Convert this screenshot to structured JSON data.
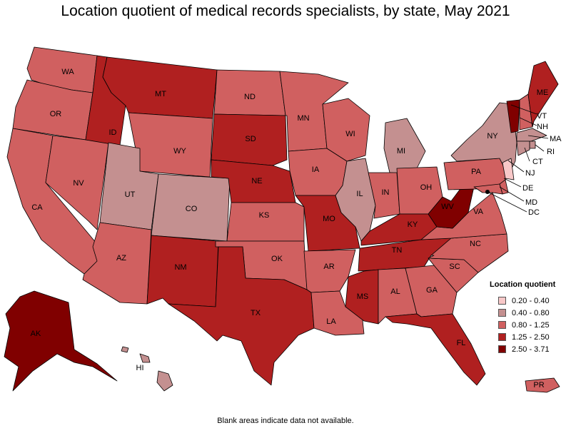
{
  "title": "Location quotient of medical records specialists, by state, May 2021",
  "footnote": "Blank areas indicate data not available.",
  "legend": {
    "title": "Location quotient",
    "items": [
      {
        "label": "0.20 - 0.40",
        "color": "#f8c8c8"
      },
      {
        "label": "0.40 - 0.80",
        "color": "#c49090"
      },
      {
        "label": "0.80 - 1.25",
        "color": "#d06060"
      },
      {
        "label": "1.25 - 2.50",
        "color": "#b02020"
      },
      {
        "label": "2.50 - 3.71",
        "color": "#800000"
      }
    ]
  },
  "states": [
    {
      "abbr": "WA",
      "class": 2
    },
    {
      "abbr": "OR",
      "class": 2
    },
    {
      "abbr": "CA",
      "class": 2
    },
    {
      "abbr": "NV",
      "class": 2
    },
    {
      "abbr": "ID",
      "class": 3
    },
    {
      "abbr": "MT",
      "class": 3
    },
    {
      "abbr": "WY",
      "class": 2
    },
    {
      "abbr": "UT",
      "class": 1
    },
    {
      "abbr": "CO",
      "class": 1
    },
    {
      "abbr": "AZ",
      "class": 2
    },
    {
      "abbr": "NM",
      "class": 3
    },
    {
      "abbr": "ND",
      "class": 2
    },
    {
      "abbr": "SD",
      "class": 3
    },
    {
      "abbr": "NE",
      "class": 3
    },
    {
      "abbr": "KS",
      "class": 2
    },
    {
      "abbr": "OK",
      "class": 2
    },
    {
      "abbr": "TX",
      "class": 3
    },
    {
      "abbr": "MN",
      "class": 2
    },
    {
      "abbr": "IA",
      "class": 2
    },
    {
      "abbr": "MO",
      "class": 3
    },
    {
      "abbr": "AR",
      "class": 2
    },
    {
      "abbr": "LA",
      "class": 2
    },
    {
      "abbr": "WI",
      "class": 2
    },
    {
      "abbr": "IL",
      "class": 1
    },
    {
      "abbr": "MI",
      "class": 1
    },
    {
      "abbr": "IN",
      "class": 2
    },
    {
      "abbr": "OH",
      "class": 2
    },
    {
      "abbr": "KY",
      "class": 3
    },
    {
      "abbr": "TN",
      "class": 3
    },
    {
      "abbr": "MS",
      "class": 3
    },
    {
      "abbr": "AL",
      "class": 2
    },
    {
      "abbr": "GA",
      "class": 2
    },
    {
      "abbr": "FL",
      "class": 3
    },
    {
      "abbr": "SC",
      "class": 2
    },
    {
      "abbr": "NC",
      "class": 2
    },
    {
      "abbr": "VA",
      "class": 2
    },
    {
      "abbr": "WV",
      "class": 4
    },
    {
      "abbr": "PA",
      "class": 2
    },
    {
      "abbr": "NY",
      "class": 1
    },
    {
      "abbr": "VT",
      "class": 4
    },
    {
      "abbr": "NH",
      "class": 2
    },
    {
      "abbr": "ME",
      "class": 3
    },
    {
      "abbr": "MA",
      "class": 1
    },
    {
      "abbr": "RI",
      "class": 1
    },
    {
      "abbr": "CT",
      "class": 1
    },
    {
      "abbr": "NJ",
      "class": 0
    },
    {
      "abbr": "DE",
      "class": 2
    },
    {
      "abbr": "MD",
      "class": 2
    },
    {
      "abbr": "DC",
      "class": 4
    },
    {
      "abbr": "AK",
      "class": 4
    },
    {
      "abbr": "HI",
      "class": 1
    },
    {
      "abbr": "PR",
      "class": 2
    }
  ]
}
